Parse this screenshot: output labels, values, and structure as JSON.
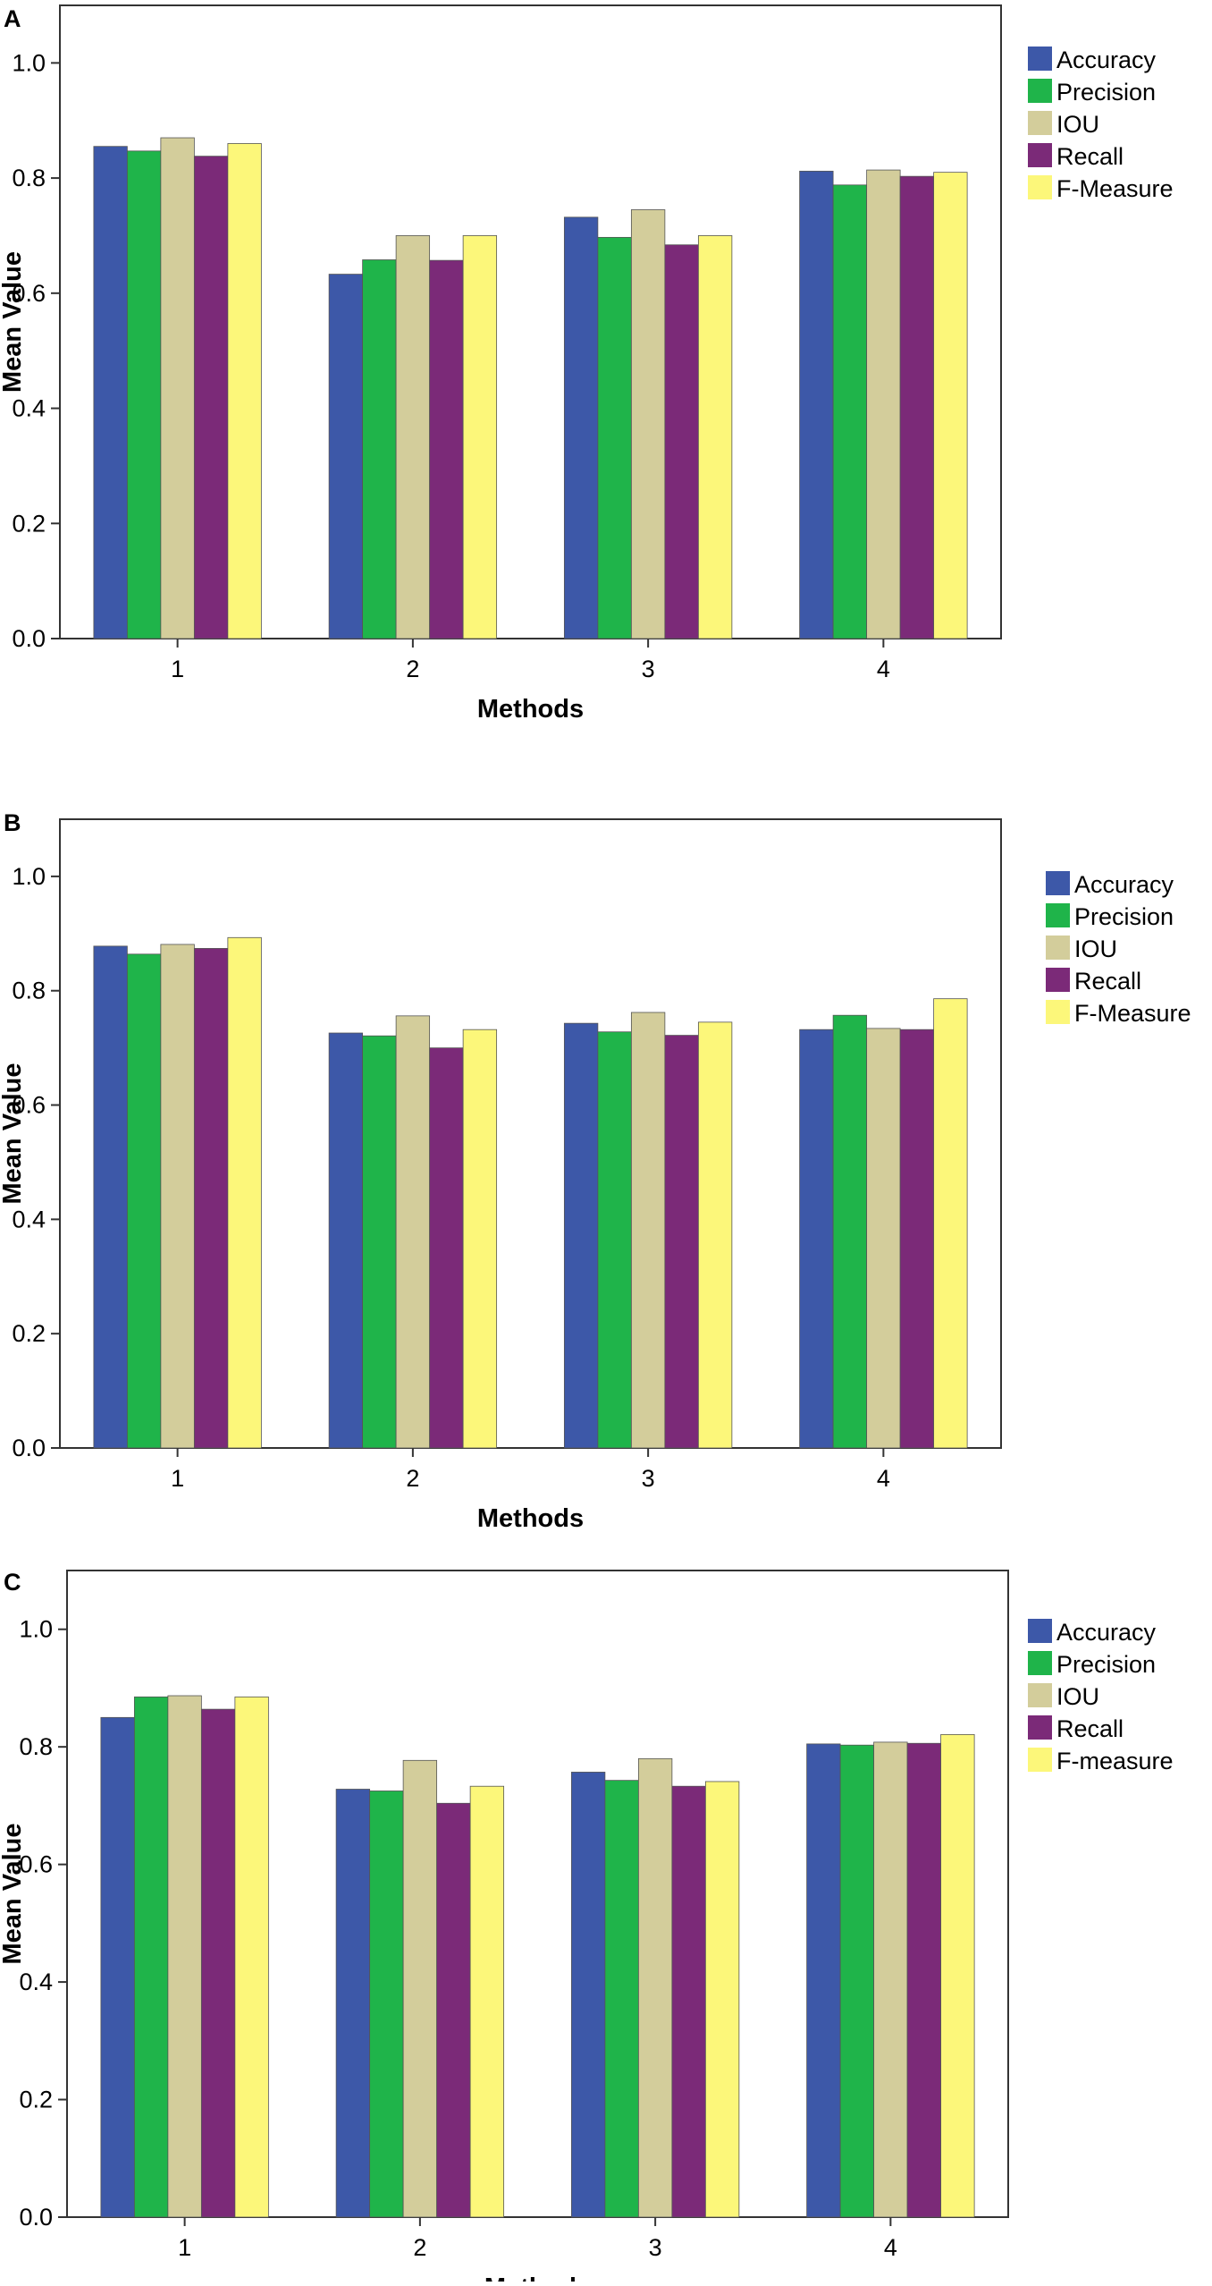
{
  "chart_data": [
    {
      "panel": "A",
      "type": "bar",
      "title": "",
      "xlabel": "Methods",
      "ylabel": "Mean Value",
      "ylim": [
        0,
        1.1
      ],
      "yticks": [
        "0.0",
        "0.2",
        "0.4",
        "0.6",
        "0.8",
        "1.0"
      ],
      "categories": [
        "1",
        "2",
        "3",
        "4"
      ],
      "grid": false,
      "legend_position": "outside-right",
      "series": [
        {
          "name": "Accuracy",
          "color": "#3d58a8",
          "values": [
            0.855,
            0.633,
            0.732,
            0.812
          ]
        },
        {
          "name": "Precision",
          "color": "#1fb44a",
          "values": [
            0.847,
            0.658,
            0.697,
            0.788
          ]
        },
        {
          "name": "IOU",
          "color": "#d3cd9b",
          "values": [
            0.87,
            0.7,
            0.745,
            0.814
          ]
        },
        {
          "name": "Recall",
          "color": "#7b2a78",
          "values": [
            0.838,
            0.657,
            0.684,
            0.803
          ]
        },
        {
          "name": "F-Measure",
          "color": "#fcf77a",
          "values": [
            0.86,
            0.7,
            0.7,
            0.81
          ]
        }
      ]
    },
    {
      "panel": "B",
      "type": "bar",
      "title": "",
      "xlabel": "Methods",
      "ylabel": "Mean Value",
      "ylim": [
        0,
        1.1
      ],
      "yticks": [
        "0.0",
        "0.2",
        "0.4",
        "0.6",
        "0.8",
        "1.0"
      ],
      "categories": [
        "1",
        "2",
        "3",
        "4"
      ],
      "grid": false,
      "legend_position": "outside-right",
      "series": [
        {
          "name": "Accuracy",
          "color": "#3d58a8",
          "values": [
            0.878,
            0.726,
            0.743,
            0.732
          ]
        },
        {
          "name": "Precision",
          "color": "#1fb44a",
          "values": [
            0.864,
            0.721,
            0.728,
            0.757
          ]
        },
        {
          "name": "IOU",
          "color": "#d3cd9b",
          "values": [
            0.881,
            0.756,
            0.762,
            0.734
          ]
        },
        {
          "name": "Recall",
          "color": "#7b2a78",
          "values": [
            0.874,
            0.7,
            0.722,
            0.732
          ]
        },
        {
          "name": "F-Measure",
          "color": "#fcf77a",
          "values": [
            0.893,
            0.732,
            0.745,
            0.786
          ]
        }
      ]
    },
    {
      "panel": "C",
      "type": "bar",
      "title": "",
      "xlabel": "Methods",
      "ylabel": "Mean Value",
      "ylim": [
        0,
        1.1
      ],
      "yticks": [
        "0.0",
        "0.2",
        "0.4",
        "0.6",
        "0.8",
        "1.0"
      ],
      "categories": [
        "1",
        "2",
        "3",
        "4"
      ],
      "grid": false,
      "legend_position": "outside-right",
      "series": [
        {
          "name": "Accuracy",
          "color": "#3d58a8",
          "values": [
            0.85,
            0.728,
            0.757,
            0.805
          ]
        },
        {
          "name": "Precision",
          "color": "#1fb44a",
          "values": [
            0.885,
            0.725,
            0.743,
            0.803
          ]
        },
        {
          "name": "IOU",
          "color": "#d3cd9b",
          "values": [
            0.887,
            0.777,
            0.78,
            0.808
          ]
        },
        {
          "name": "Recall",
          "color": "#7b2a78",
          "values": [
            0.864,
            0.704,
            0.733,
            0.806
          ]
        },
        {
          "name": "F-measure",
          "color": "#fcf77a",
          "values": [
            0.885,
            0.733,
            0.741,
            0.821
          ]
        }
      ]
    }
  ]
}
